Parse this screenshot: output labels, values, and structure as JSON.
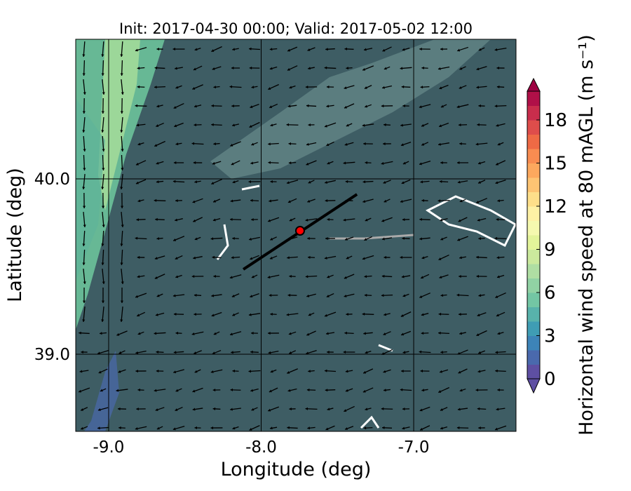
{
  "map": {
    "title": "Init: 2017-04-30 00:00; Valid: 2017-05-02 12:00",
    "x_label": "Longitude (deg)",
    "y_label": "Latitude (deg)",
    "xlim": [
      -9.216,
      -6.329
    ],
    "ylim": [
      38.56,
      40.796
    ],
    "xticks": [
      {
        "value": -9,
        "label": "-9.0"
      },
      {
        "value": -8,
        "label": "-8.0"
      },
      {
        "value": -7,
        "label": "-7.0"
      }
    ],
    "yticks": [
      {
        "value": 39,
        "label": "39.0"
      },
      {
        "value": 40,
        "label": "40.0"
      }
    ],
    "grid": true,
    "transect": {
      "lon": [
        -8.117,
        -7.372
      ],
      "lat": [
        39.484,
        39.912
      ],
      "color": "#000000"
    },
    "marker": {
      "lon": -7.745,
      "lat": 39.704,
      "color": "#ff0000"
    },
    "colorbar": {
      "label": "Horizontal wind speed at 80 mAGL (m s⁻¹)",
      "clim": [
        0,
        20
      ],
      "ticks": [
        0,
        3,
        6,
        9,
        12,
        15,
        18
      ],
      "colors": [
        "#5e4fa2",
        "#4a69ad",
        "#3d84b8",
        "#3f9db4",
        "#58b2ab",
        "#73c6a4",
        "#91d2a4",
        "#afdea3",
        "#cbe99d",
        "#e3f49a",
        "#f5f9af",
        "#fef1a5",
        "#fedf8a",
        "#fdc473",
        "#fca85e",
        "#f88c51",
        "#ee6a45",
        "#de4d4b",
        "#c92d4c",
        "#b01048"
      ],
      "under_color": "#5e4fa2",
      "over_color": "#9e0142"
    }
  }
}
